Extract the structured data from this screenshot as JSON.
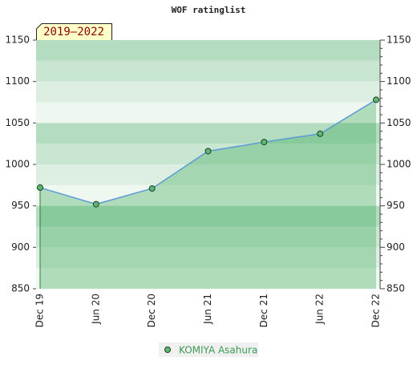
{
  "chart_data": {
    "type": "line",
    "title": "WOF ratinglist",
    "period_label": "2019–2022",
    "categories": [
      "Dec 19",
      "Jun 20",
      "Dec 20",
      "Jun 21",
      "Dec 21",
      "Jun 22",
      "Dec 22"
    ],
    "series": [
      {
        "name": "KOMIYA Asahura",
        "color": "#5b9bd5",
        "marker_color": "#5cb870",
        "values": [
          972,
          952,
          971,
          1016,
          1027,
          1037,
          1078
        ]
      }
    ],
    "ylim": [
      850,
      1150
    ],
    "yticks": [
      850,
      900,
      950,
      1000,
      1050,
      1100,
      1150
    ],
    "y2lim": [
      850,
      1150
    ],
    "y2ticks": [
      850,
      900,
      950,
      1000,
      1050,
      1100,
      1150
    ]
  }
}
